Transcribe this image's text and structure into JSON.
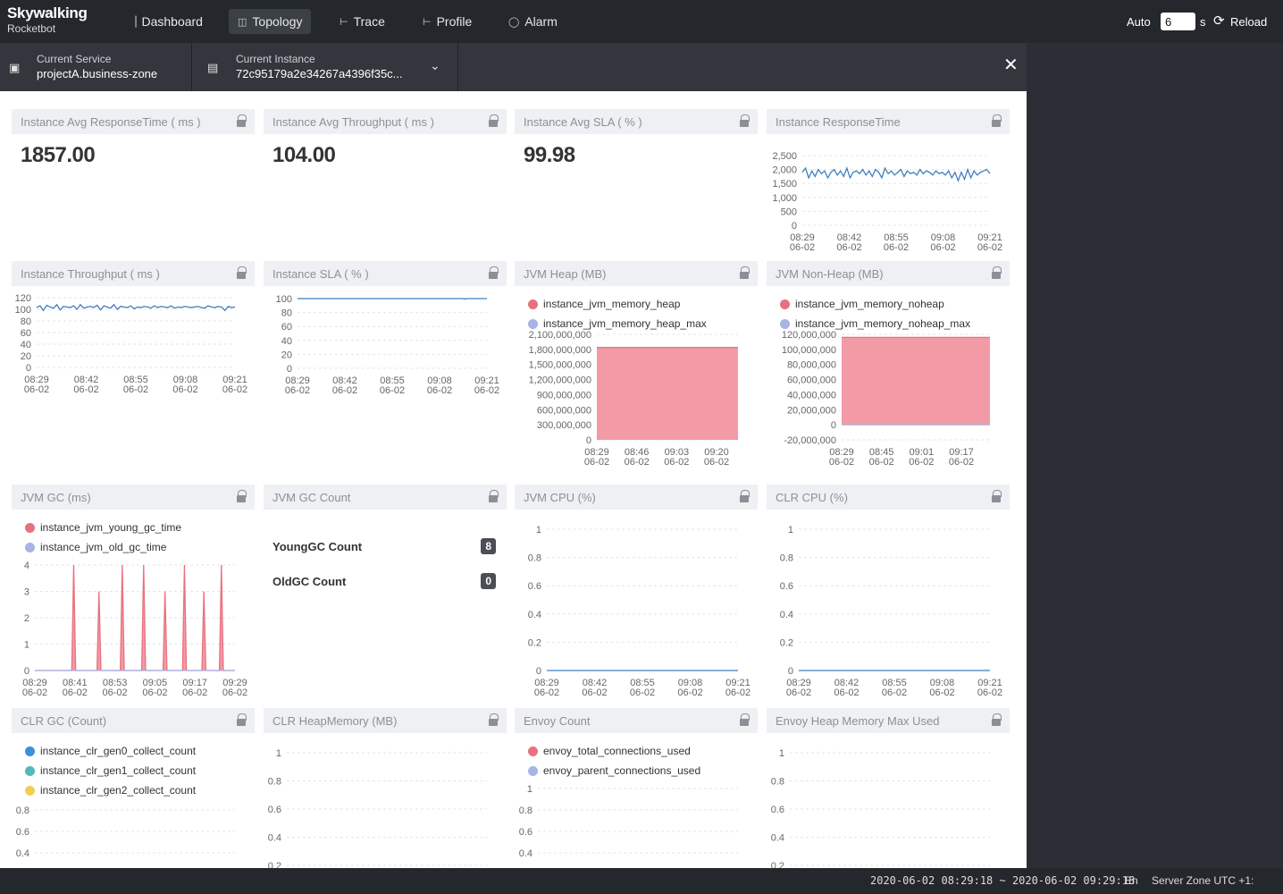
{
  "app": {
    "logo_line1": "Skywalking",
    "logo_line2": "Rocketbot"
  },
  "nav": [
    {
      "label": "Dashboard",
      "icon": "bar-chart-icon"
    },
    {
      "label": "Topology",
      "icon": "topology-icon"
    },
    {
      "label": "Trace",
      "icon": "trace-icon"
    },
    {
      "label": "Profile",
      "icon": "profile-icon"
    },
    {
      "label": "Alarm",
      "icon": "alarm-icon"
    }
  ],
  "toolbar": {
    "auto_label": "Auto",
    "interval_value": "6",
    "interval_unit": "s",
    "reload_label": "Reload"
  },
  "selectors": {
    "service_label": "Current Service",
    "service_value": "projectA.business-zone",
    "instance_label": "Current Instance",
    "instance_value": "72c95179a2e34267a4396f35c..."
  },
  "cards": [
    {
      "title": "Instance Avg ResponseTime ( ms )",
      "value": "1857.00"
    },
    {
      "title": "Instance Avg Throughput ( ms )",
      "value": "104.00"
    },
    {
      "title": "Instance Avg SLA ( % )",
      "value": "99.98"
    },
    {
      "title": "Instance ResponseTime"
    },
    {
      "title": "Instance Throughput ( ms )"
    },
    {
      "title": "Instance SLA ( % )"
    },
    {
      "title": "JVM Heap (MB)"
    },
    {
      "title": "JVM Non-Heap (MB)"
    },
    {
      "title": "JVM GC (ms)"
    },
    {
      "title": "JVM GC Count",
      "rows": [
        {
          "label": "YoungGC Count",
          "value": "8"
        },
        {
          "label": "OldGC Count",
          "value": "0"
        }
      ]
    },
    {
      "title": "JVM CPU (%)"
    },
    {
      "title": "CLR CPU (%)"
    },
    {
      "title": "CLR GC (Count)"
    },
    {
      "title": "CLR HeapMemory (MB)"
    },
    {
      "title": "Envoy Count"
    },
    {
      "title": "Envoy Heap Memory Max Used"
    }
  ],
  "colors": {
    "line_blue": "#3f7fc0",
    "red": "#e8717f",
    "red_fill": "#f29ba6",
    "purple": "#a7b4e4",
    "purple_fill": "#b5bfe8",
    "cyan": "#54b9b6",
    "yellow": "#f4cd57",
    "bright_blue": "#3c8fe0"
  },
  "chart_data": [
    {
      "id": "responsetime",
      "type": "line",
      "ylim": [
        0,
        2500
      ],
      "yticks": [
        "2,500",
        "2,000",
        "1,500",
        "1,000",
        "500",
        "0"
      ],
      "xticks": [
        "08:29\n06-02",
        "08:42\n06-02",
        "08:55\n06-02",
        "09:08\n06-02",
        "09:21\n06-02"
      ],
      "series": [
        {
          "values": [
            1900,
            2050,
            1700,
            1950,
            1750,
            2000,
            1850,
            1950,
            1700,
            1900,
            2000,
            1800,
            1950,
            1750,
            2050,
            1700,
            1900,
            1950,
            1850,
            2000,
            1800,
            1950,
            1750,
            2000,
            1900,
            1700,
            2050,
            1850,
            1950,
            1800,
            1900,
            2000,
            1750,
            1950,
            1850,
            1900,
            1800,
            2000,
            1850,
            1950,
            1900,
            1800,
            1950,
            1850,
            1900,
            1800,
            1950,
            1700,
            1900,
            1600,
            1900,
            1650,
            2000,
            1700,
            1950,
            1800,
            1900,
            1950,
            2000,
            1850
          ]
        }
      ]
    },
    {
      "id": "throughput",
      "type": "line",
      "ylim": [
        0,
        120
      ],
      "yticks": [
        "120",
        "100",
        "80",
        "60",
        "40",
        "20",
        "0"
      ],
      "xticks": [
        "08:29\n06-02",
        "08:42\n06-02",
        "08:55\n06-02",
        "09:08\n06-02",
        "09:21\n06-02"
      ],
      "series": [
        {
          "values": [
            103,
            106,
            98,
            107,
            104,
            102,
            108,
            99,
            105,
            104,
            103,
            106,
            100,
            108,
            102,
            104,
            105,
            103,
            107,
            99,
            106,
            104,
            102,
            108,
            100,
            105,
            104,
            103,
            106,
            101,
            104,
            103,
            105,
            104,
            102,
            106,
            103,
            105,
            104,
            103,
            106,
            102,
            104,
            103,
            105,
            104,
            103,
            104,
            105,
            103,
            102,
            106,
            104,
            103,
            105,
            104,
            98,
            105,
            103,
            104
          ]
        }
      ]
    },
    {
      "id": "sla",
      "type": "line",
      "ylim": [
        0,
        100
      ],
      "yticks": [
        "100",
        "80",
        "60",
        "40",
        "20",
        "0"
      ],
      "xticks": [
        "08:29\n06-02",
        "08:42\n06-02",
        "08:55\n06-02",
        "09:08\n06-02",
        "09:21\n06-02"
      ],
      "series": [
        {
          "values": [
            100,
            100,
            100,
            100,
            100,
            100,
            100,
            100,
            100,
            100,
            100,
            100,
            100,
            100,
            100,
            100,
            100,
            100,
            100,
            100,
            100,
            100,
            100,
            100,
            100,
            100,
            100,
            100,
            100,
            100,
            100,
            100,
            100,
            100,
            100,
            100,
            100,
            100,
            100,
            100,
            100,
            100,
            100,
            100,
            100,
            100,
            100,
            100,
            100,
            100,
            100,
            100,
            99.6,
            100,
            100,
            100,
            100,
            100,
            100,
            100
          ]
        }
      ]
    },
    {
      "id": "heap",
      "type": "area",
      "ylim": [
        0,
        2100000000
      ],
      "yticks": [
        "2,100,000,000",
        "1,800,000,000",
        "1,500,000,000",
        "1,200,000,000",
        "900,000,000",
        "600,000,000",
        "300,000,000",
        "0"
      ],
      "xticks": [
        "08:29\n06-02",
        "08:46\n06-02",
        "09:03\n06-02",
        "09:20\n06-02"
      ],
      "series": [
        {
          "name": "instance_jvm_memory_heap",
          "values": [
            30000000,
            130000000,
            190000000,
            60000000,
            100000000,
            150000000,
            40000000,
            120000000,
            180000000,
            50000000,
            110000000,
            160000000,
            40000000,
            130000000,
            190000000,
            60000000,
            100000000,
            150000000,
            50000000,
            130000000,
            190000000,
            60000000,
            110000000,
            160000000,
            40000000,
            140000000,
            180000000,
            50000000,
            120000000,
            170000000,
            60000000,
            110000000,
            160000000,
            40000000,
            120000000,
            180000000,
            70000000,
            100000000,
            150000000,
            40000000
          ]
        },
        {
          "name": "instance_jvm_memory_heap_max",
          "values": [
            1840000000,
            1840000000,
            1840000000,
            1840000000,
            1840000000,
            1840000000,
            1840000000,
            1840000000,
            1840000000,
            1840000000,
            1840000000,
            1840000000,
            1840000000,
            1840000000,
            1840000000,
            1840000000,
            1840000000,
            1840000000,
            1840000000,
            1840000000,
            1840000000,
            1840000000,
            1840000000,
            1840000000,
            1840000000,
            1840000000,
            1840000000,
            1840000000,
            1840000000,
            1840000000,
            1840000000,
            1840000000,
            1840000000,
            1840000000,
            1840000000,
            1840000000,
            1840000000,
            1840000000,
            1840000000,
            1840000000
          ]
        }
      ]
    },
    {
      "id": "nonheap",
      "type": "area",
      "ylim": [
        -20000000,
        120000000
      ],
      "yticks": [
        "120,000,000",
        "100,000,000",
        "80,000,000",
        "60,000,000",
        "40,000,000",
        "20,000,000",
        "0",
        "-20,000,000"
      ],
      "xticks": [
        "08:29\n06-02",
        "08:45\n06-02",
        "09:01\n06-02",
        "09:17\n06-02"
      ],
      "series": [
        {
          "name": "instance_jvm_memory_noheap",
          "values": [
            116000000,
            116000000,
            116000000,
            116000000,
            116000000,
            116000000,
            116000000,
            116000000,
            116000000,
            116000000,
            116000000,
            116000000,
            116000000,
            116000000,
            116000000,
            116000000,
            116000000,
            116000000,
            116000000,
            116000000
          ]
        },
        {
          "name": "instance_jvm_memory_noheap_max",
          "values": [
            0,
            0,
            0,
            0,
            0,
            0,
            0,
            0,
            0,
            0,
            0,
            0,
            0,
            0,
            0,
            0,
            0,
            0,
            0,
            0
          ]
        }
      ]
    },
    {
      "id": "gc",
      "type": "area",
      "ylim": [
        0,
        4
      ],
      "yticks": [
        "4",
        "3",
        "2",
        "1",
        "0"
      ],
      "xticks": [
        "08:29\n06-02",
        "08:41\n06-02",
        "08:53\n06-02",
        "09:05\n06-02",
        "09:17\n06-02",
        "09:29\n06-02"
      ],
      "series": [
        {
          "name": "instance_jvm_young_gc_time",
          "values": [
            0,
            0,
            0,
            0,
            0,
            0,
            0,
            0,
            0,
            0,
            0,
            0,
            0,
            0,
            0,
            0,
            0,
            0,
            0,
            0,
            4,
            0,
            0,
            0,
            0,
            0,
            0,
            0,
            0,
            0,
            0,
            0,
            0,
            3,
            0,
            0,
            0,
            0,
            0,
            0,
            0,
            0,
            0,
            0,
            0,
            4,
            0,
            0,
            0,
            0,
            0,
            0,
            0,
            0,
            0,
            0,
            4,
            0,
            0,
            0,
            0,
            0,
            0,
            0,
            0,
            0,
            0,
            3,
            0,
            0,
            0,
            0,
            0,
            0,
            0,
            0,
            0,
            4,
            0,
            0,
            0,
            0,
            0,
            0,
            0,
            0,
            0,
            3,
            0,
            0,
            0,
            0,
            0,
            0,
            0,
            0,
            4,
            0,
            0,
            0,
            0,
            0,
            0,
            0
          ]
        },
        {
          "name": "instance_jvm_old_gc_time",
          "values": [
            0,
            0,
            0,
            0,
            0,
            0,
            0,
            0,
            0,
            0
          ]
        }
      ]
    },
    {
      "id": "jvmcpu",
      "type": "line",
      "ylim": [
        0,
        1
      ],
      "yticks": [
        "1",
        "0.8",
        "0.6",
        "0.4",
        "0.2",
        "0"
      ],
      "xticks": [
        "08:29\n06-02",
        "08:42\n06-02",
        "08:55\n06-02",
        "09:08\n06-02",
        "09:21\n06-02"
      ],
      "series": [
        {
          "values": [
            0,
            0,
            0,
            0,
            0,
            0,
            0,
            0,
            0,
            0
          ]
        }
      ]
    },
    {
      "id": "clrcpu",
      "type": "line",
      "ylim": [
        0,
        1
      ],
      "yticks": [
        "1",
        "0.8",
        "0.6",
        "0.4",
        "0.2",
        "0"
      ],
      "xticks": [
        "08:29\n06-02",
        "08:42\n06-02",
        "08:55\n06-02",
        "09:08\n06-02",
        "09:21\n06-02"
      ],
      "series": [
        {
          "values": [
            0,
            0,
            0,
            0,
            0,
            0,
            0,
            0,
            0,
            0
          ]
        }
      ]
    },
    {
      "id": "clrgc",
      "type": "line",
      "yticks": [
        "0.8",
        "0.6",
        "0.4"
      ],
      "series": [
        {
          "name": "instance_clr_gen0_collect_count"
        },
        {
          "name": "instance_clr_gen1_collect_count"
        },
        {
          "name": "instance_clr_gen2_collect_count"
        }
      ]
    },
    {
      "id": "clrheap",
      "type": "line",
      "yticks": [
        "1",
        "0.8",
        "0.6",
        "0.4",
        "0.2"
      ]
    },
    {
      "id": "envoy",
      "type": "line",
      "yticks": [
        "1",
        "0.8",
        "0.6",
        "0.4"
      ],
      "series": [
        {
          "name": "envoy_total_connections_used"
        },
        {
          "name": "envoy_parent_connections_used"
        }
      ]
    },
    {
      "id": "envoyheap",
      "type": "line",
      "yticks": [
        "1",
        "0.8",
        "0.6",
        "0.4",
        "0.2"
      ]
    }
  ],
  "footer": {
    "time_range": "2020-06-02 08:29:18 ~ 2020-06-02 09:29:18",
    "lang": "En",
    "zone": "Server Zone UTC +1:"
  }
}
